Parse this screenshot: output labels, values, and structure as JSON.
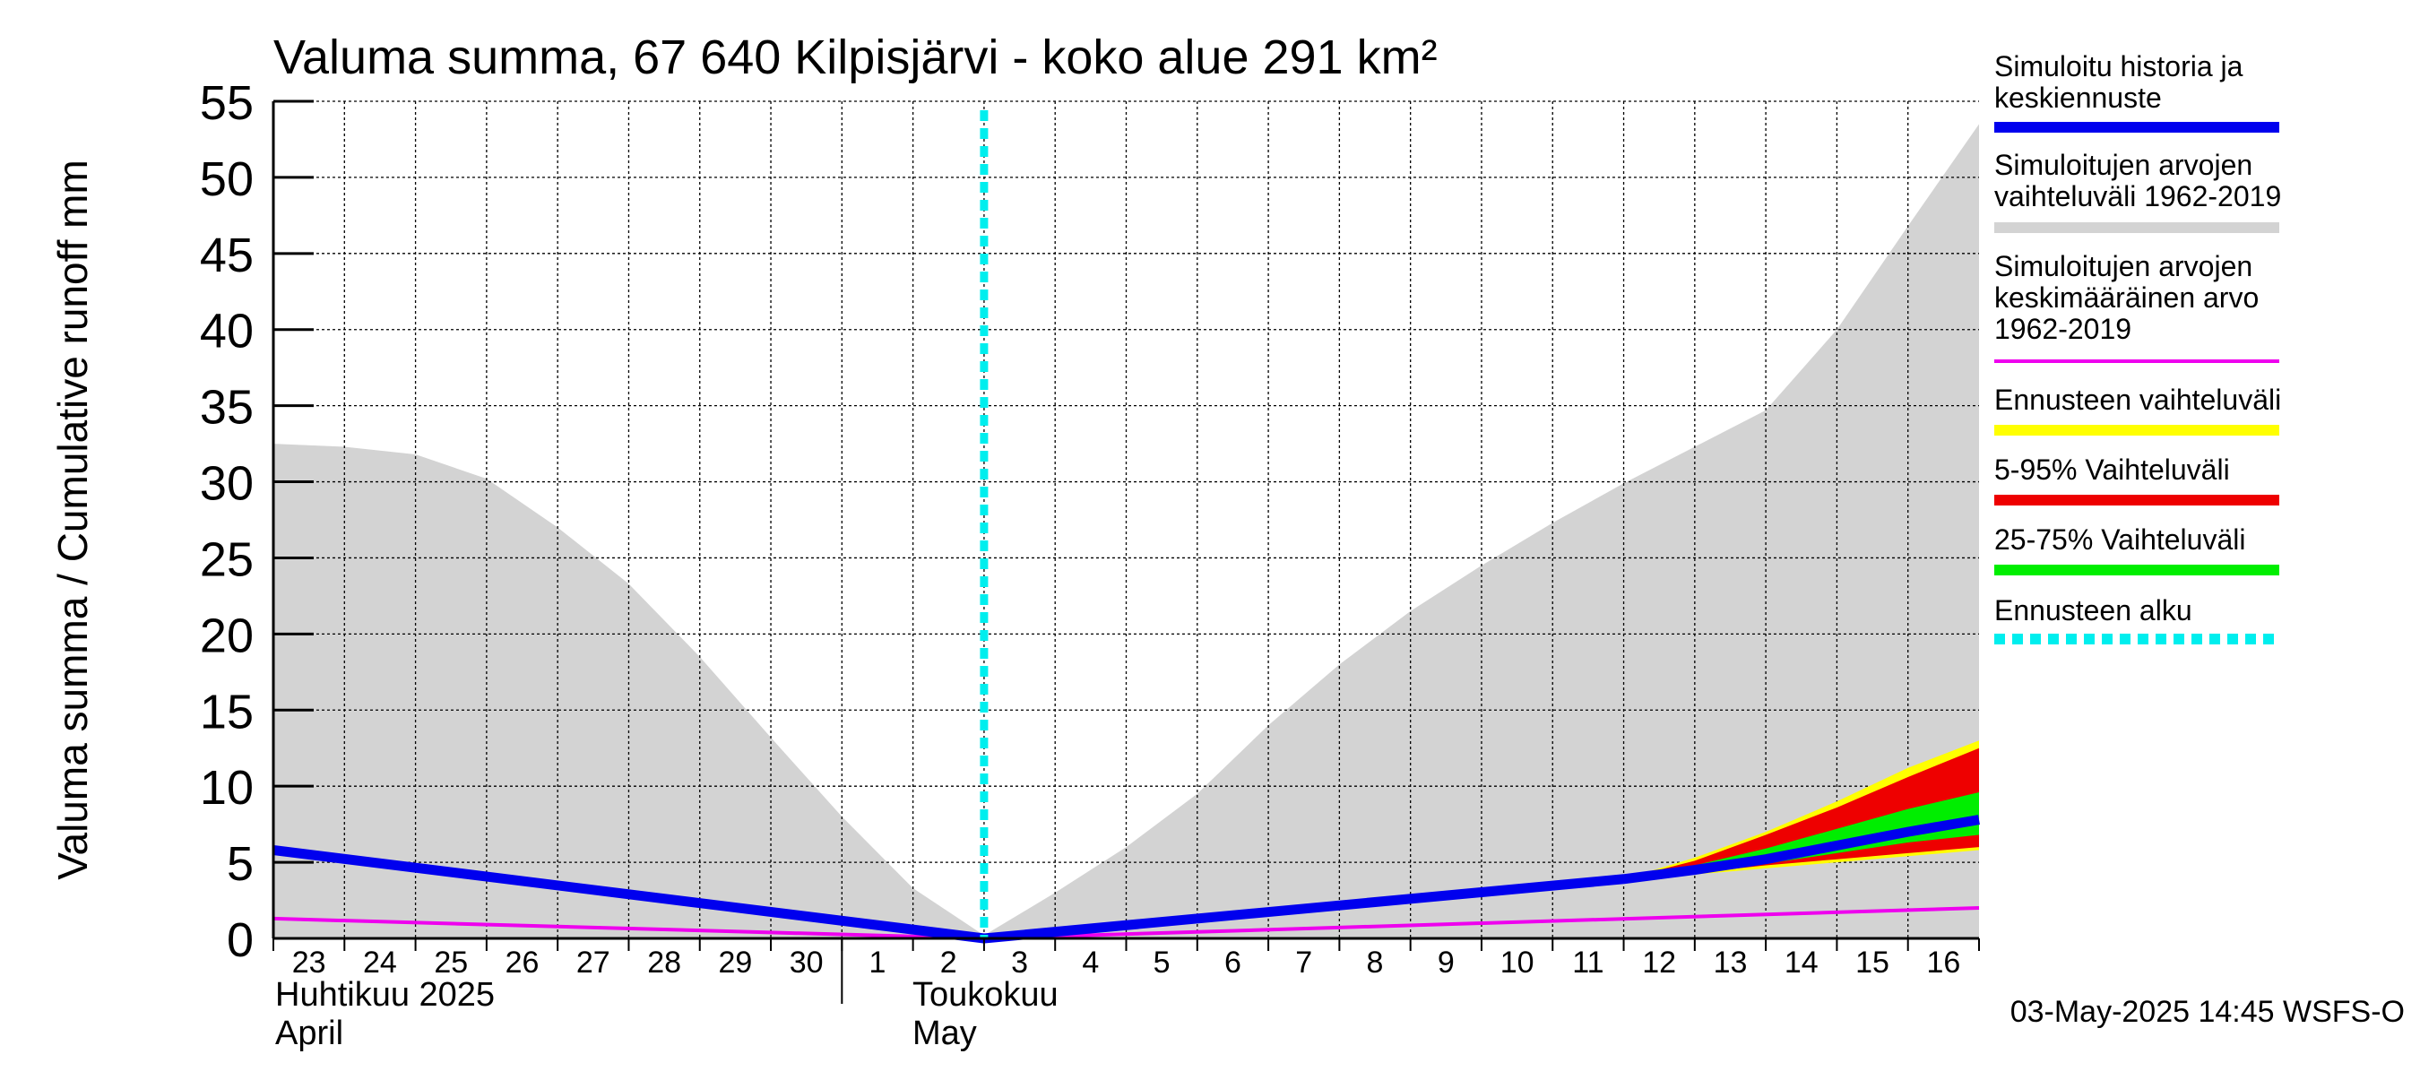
{
  "chart_data": {
    "type": "area",
    "title": "Valuma summa, 67 640 Kilpisjärvi - koko alue 291 km²",
    "ylabel": "Valuma summa / Cumulative runoff    mm",
    "ylim": [
      0,
      55
    ],
    "yticks": [
      0,
      5,
      10,
      15,
      20,
      25,
      30,
      35,
      40,
      45,
      50,
      55
    ],
    "xlim": [
      "2025-04-23",
      "2025-05-16"
    ],
    "x_day_labels": [
      "23",
      "24",
      "25",
      "26",
      "27",
      "28",
      "29",
      "30",
      "1",
      "2",
      "3",
      "4",
      "5",
      "6",
      "7",
      "8",
      "9",
      "10",
      "11",
      "12",
      "13",
      "14",
      "15",
      "16"
    ],
    "month_labels": [
      {
        "fi": "Huhtikuu  2025",
        "en": "April"
      },
      {
        "fi": "Toukokuu",
        "en": "May"
      }
    ],
    "grid": true,
    "legend_position": "right",
    "footer": "03-May-2025 14:45 WSFS-O",
    "forecast_start": "2025-05-03",
    "colors": {
      "history": "#0000ee",
      "range": "#d3d3d3",
      "mean": "#ee00ee",
      "forecast_range": "#ffff00",
      "p5_95": "#ee0000",
      "p25_75": "#00ee00",
      "forecast_start": "#00eeee"
    },
    "legend": [
      {
        "label": "Simuloitu historia ja keskiennuste",
        "lines": [
          "Simuloitu historia ja",
          "keskiennuste"
        ],
        "key": "history"
      },
      {
        "label": "Simuloitujen arvojen vaihteluväli 1962-2019",
        "lines": [
          "Simuloitujen arvojen",
          "vaihteluväli 1962-2019"
        ],
        "key": "range"
      },
      {
        "label": "Simuloitujen arvojen keskimääräinen arvo 1962-2019",
        "lines": [
          "Simuloitujen arvojen",
          "keskimääräinen arvo",
          "   1962-2019"
        ],
        "key": "mean"
      },
      {
        "label": "Ennusteen vaihteluväli",
        "lines": [
          "Ennusteen vaihteluväli"
        ],
        "key": "forecast_range"
      },
      {
        "label": "5-95% Vaihteluväli",
        "lines": [
          "5-95% Vaihteluväli"
        ],
        "key": "p5_95"
      },
      {
        "label": "25-75% Vaihteluväli",
        "lines": [
          "25-75% Vaihteluväli"
        ],
        "key": "p25_75"
      },
      {
        "label": "Ennusteen alku",
        "lines": [
          "Ennusteen alku"
        ],
        "key": "forecast_start"
      }
    ],
    "range_upper": {
      "x": [
        "2025-04-23",
        "2025-04-24",
        "2025-04-25",
        "2025-04-26",
        "2025-04-27",
        "2025-04-28",
        "2025-04-29",
        "2025-04-30",
        "2025-05-01",
        "2025-05-02",
        "2025-05-03",
        "2025-05-04",
        "2025-05-05",
        "2025-05-06",
        "2025-05-07",
        "2025-05-08",
        "2025-05-09",
        "2025-05-10",
        "2025-05-11",
        "2025-05-12",
        "2025-05-13",
        "2025-05-14",
        "2025-05-15",
        "2025-05-16",
        "2025-05-17"
      ],
      "y": [
        32.5,
        32.3,
        31.8,
        30.2,
        27.0,
        23.3,
        18.5,
        13.2,
        8.0,
        3.3,
        0.2,
        3.0,
        6.0,
        9.5,
        14.0,
        18.0,
        21.5,
        24.5,
        27.3,
        29.9,
        32.3,
        34.7,
        40.0,
        46.8,
        53.5
      ]
    },
    "series": [
      {
        "name": "Simuloitu historia ja keskiennuste",
        "key": "history",
        "x": [
          "2025-04-23",
          "2025-05-03",
          "2025-05-12",
          "2025-05-13",
          "2025-05-14",
          "2025-05-15",
          "2025-05-16",
          "2025-05-17"
        ],
        "y": [
          5.8,
          0.0,
          3.9,
          4.5,
          5.2,
          6.1,
          7.0,
          7.8
        ]
      },
      {
        "name": "Simuloitujen arvojen keskimääräinen arvo 1962-2019",
        "key": "mean",
        "x": [
          "2025-04-23",
          "2025-05-03",
          "2025-05-17"
        ],
        "y": [
          1.3,
          0.0,
          2.0
        ]
      }
    ],
    "bands": [
      {
        "name": "Ennusteen vaihteluväli",
        "key": "forecast_range",
        "x": [
          "2025-05-12",
          "2025-05-13",
          "2025-05-14",
          "2025-05-15",
          "2025-05-16",
          "2025-05-17"
        ],
        "upper": [
          3.9,
          5.3,
          7.0,
          9.0,
          11.2,
          13.0
        ],
        "lower": [
          3.9,
          4.2,
          4.6,
          5.0,
          5.4,
          5.8
        ]
      },
      {
        "name": "5-95% Vaihteluväli",
        "key": "p5_95",
        "x": [
          "2025-05-12",
          "2025-05-13",
          "2025-05-14",
          "2025-05-15",
          "2025-05-16",
          "2025-05-17"
        ],
        "upper": [
          3.9,
          5.1,
          6.8,
          8.6,
          10.6,
          12.5
        ],
        "lower": [
          3.9,
          4.3,
          4.8,
          5.2,
          5.6,
          6.0
        ]
      },
      {
        "name": "25-75% Vaihteluväli",
        "key": "p25_75",
        "x": [
          "2025-05-12",
          "2025-05-13",
          "2025-05-14",
          "2025-05-15",
          "2025-05-16",
          "2025-05-17"
        ],
        "upper": [
          3.9,
          4.8,
          5.9,
          7.2,
          8.5,
          9.6
        ],
        "lower": [
          3.9,
          4.4,
          4.9,
          5.6,
          6.3,
          6.8
        ]
      }
    ]
  }
}
